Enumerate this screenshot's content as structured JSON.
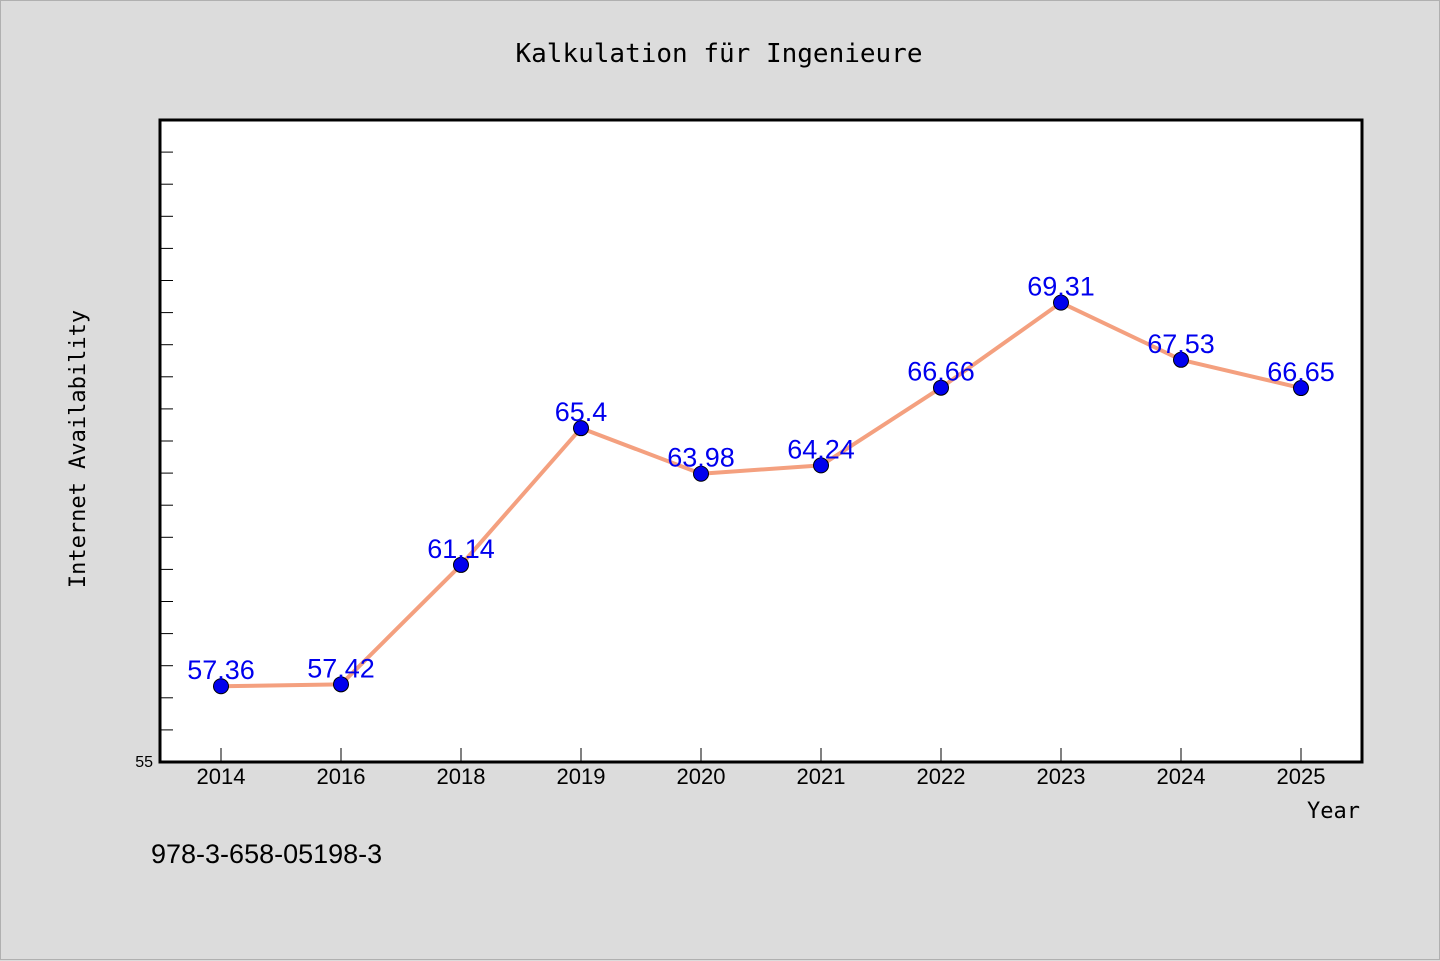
{
  "chart_data": {
    "type": "line",
    "title": "Kalkulation für Ingenieure",
    "xlabel": "Year",
    "ylabel": "Internet Availability",
    "categories": [
      "2014",
      "2016",
      "2018",
      "2019",
      "2020",
      "2021",
      "2022",
      "2023",
      "2024",
      "2025"
    ],
    "series": [
      {
        "values": [
          57.36,
          57.42,
          61.14,
          65.4,
          63.98,
          64.24,
          66.66,
          69.31,
          67.53,
          66.65
        ]
      }
    ],
    "data_labels": [
      "57.36",
      "57.42",
      "61.14",
      "65.4",
      "63.98",
      "64.24",
      "66.66",
      "69.31",
      "67.53",
      "66.65"
    ],
    "ylim": [
      55,
      75
    ],
    "y_tick_label": "55",
    "grid": false,
    "legend": "none",
    "line_color": "#f4a07f",
    "marker_color": "#0000ee",
    "label_color": "#0000ee",
    "background_color": "#dcdcdc",
    "plot_background_color": "#ffffff"
  },
  "footer": {
    "isbn": "978-3-658-05198-3"
  }
}
